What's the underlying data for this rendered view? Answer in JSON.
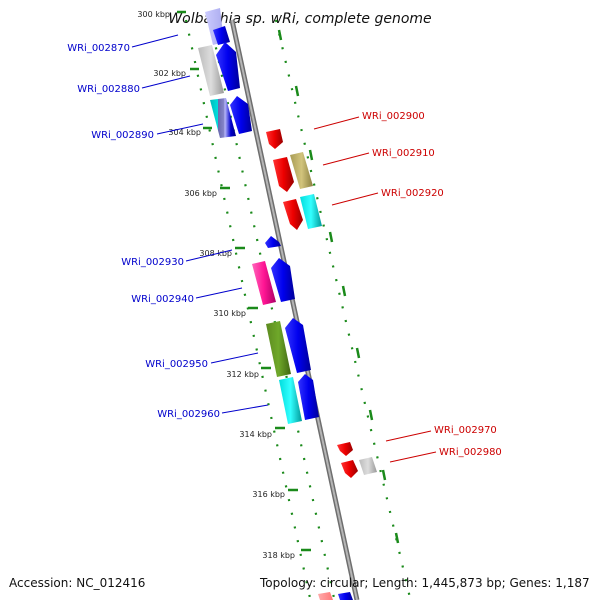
{
  "title": "Wolbachia sp. wRi, complete genome",
  "accession": "Accession: NC_012416",
  "topology": "Topology: circular; Length: 1,445,873 bp; Genes: 1,187",
  "kbp_ticks": [
    "300 kbp",
    "302 kbp",
    "304 kbp",
    "306 kbp",
    "308 kbp",
    "310 kbp",
    "312 kbp",
    "314 kbp",
    "316 kbp",
    "318 kbp"
  ],
  "colors": {
    "left_labels": "#0000cc",
    "right_labels": "#cc0000",
    "backbone": "#8c8c8c",
    "ticks": "#1a8a1a"
  },
  "left_genes": [
    "WRi_002870",
    "WRi_002880",
    "WRi_002890",
    "WRi_002930",
    "WRi_002940",
    "WRi_002950",
    "WRi_002960"
  ],
  "right_genes": [
    "WRi_002900",
    "WRi_002910",
    "WRi_002920",
    "WRi_002970",
    "WRi_002980"
  ]
}
